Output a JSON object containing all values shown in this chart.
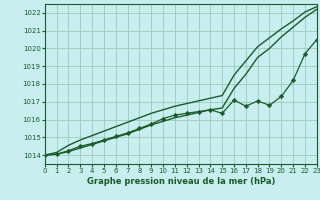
{
  "bg_color": "#c8eef0",
  "grid_color": "#99ccbb",
  "line_color": "#1a5c28",
  "marker_color": "#1a5c28",
  "title": "Graphe pression niveau de la mer (hPa)",
  "xlim": [
    0,
    23
  ],
  "ylim": [
    1013.5,
    1022.5
  ],
  "xticks": [
    0,
    1,
    2,
    3,
    4,
    5,
    6,
    7,
    8,
    9,
    10,
    11,
    12,
    13,
    14,
    15,
    16,
    17,
    18,
    19,
    20,
    21,
    22,
    23
  ],
  "yticks": [
    1014,
    1015,
    1016,
    1017,
    1018,
    1019,
    1020,
    1021,
    1022
  ],
  "hours": [
    0,
    1,
    2,
    3,
    4,
    5,
    6,
    7,
    8,
    9,
    10,
    11,
    12,
    13,
    14,
    15,
    16,
    17,
    18,
    19,
    20,
    21,
    22,
    23
  ],
  "line_smooth_upper": [
    1014.0,
    1014.15,
    1014.55,
    1014.85,
    1015.1,
    1015.35,
    1015.6,
    1015.85,
    1016.1,
    1016.35,
    1016.55,
    1016.75,
    1016.9,
    1017.05,
    1017.2,
    1017.35,
    1018.5,
    1019.3,
    1020.1,
    1020.6,
    1021.1,
    1021.55,
    1022.05,
    1022.35
  ],
  "line_smooth_lower": [
    1014.0,
    1014.05,
    1014.2,
    1014.4,
    1014.6,
    1014.8,
    1015.0,
    1015.2,
    1015.45,
    1015.7,
    1015.9,
    1016.1,
    1016.25,
    1016.4,
    1016.55,
    1016.65,
    1017.75,
    1018.55,
    1019.5,
    1020.0,
    1020.65,
    1021.2,
    1021.75,
    1022.2
  ],
  "line_data": [
    1014.0,
    1014.05,
    1014.25,
    1014.5,
    1014.65,
    1014.85,
    1015.05,
    1015.25,
    1015.5,
    1015.75,
    1016.05,
    1016.25,
    1016.35,
    1016.45,
    1016.55,
    1016.35,
    1017.1,
    1016.75,
    1017.05,
    1016.8,
    1017.3,
    1018.2,
    1019.7,
    1020.5
  ]
}
